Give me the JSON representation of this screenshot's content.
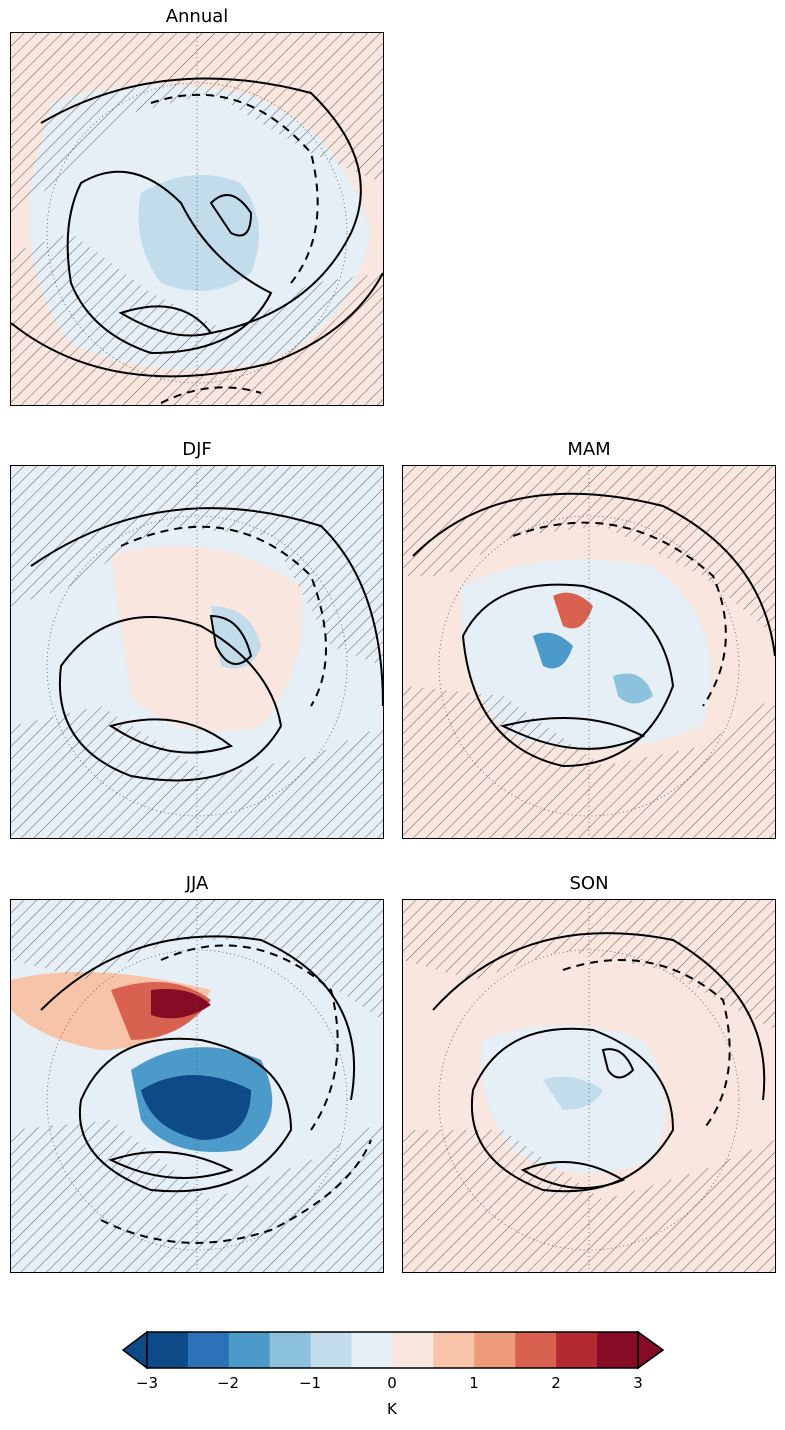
{
  "panels": [
    {
      "id": "annual",
      "title": "Annual"
    },
    {
      "id": "djf",
      "title": "DJF"
    },
    {
      "id": "mam",
      "title": "MAM"
    },
    {
      "id": "jja",
      "title": "JJA"
    },
    {
      "id": "son",
      "title": "SON"
    }
  ],
  "colorbar": {
    "unit": "K",
    "ticks": [
      "−3",
      "−2",
      "−1",
      "0",
      "1",
      "2",
      "3"
    ],
    "range": [
      -3,
      3
    ],
    "extend": "both",
    "colors": [
      "#0d4a87",
      "#2b72b8",
      "#4b9ac9",
      "#8cc2de",
      "#c2dcec",
      "#e6eff5",
      "#f8e6df",
      "#f7c4aa",
      "#ee9b7a",
      "#d8624f",
      "#b42a32",
      "#850c24"
    ]
  }
}
